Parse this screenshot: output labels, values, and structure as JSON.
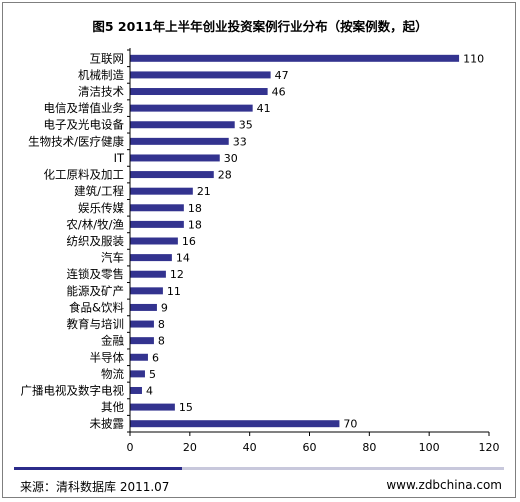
{
  "chart_data": {
    "type": "bar",
    "orientation": "horizontal",
    "title": "图5 2011年上半年创业投资案例行业分布（按案例数，起）",
    "categories": [
      "互联网",
      "机械制造",
      "清洁技术",
      "电信及增值业务",
      "电子及光电设备",
      "生物技术/医疗健康",
      "IT",
      "化工原料及加工",
      "建筑/工程",
      "娱乐传媒",
      "农/林/牧/渔",
      "纺织及服装",
      "汽车",
      "连锁及零售",
      "能源及矿产",
      "食品&饮料",
      "教育与培训",
      "金融",
      "半导体",
      "物流",
      "广播电视及数字电视",
      "其他",
      "未披露"
    ],
    "values": [
      110,
      47,
      46,
      41,
      35,
      33,
      30,
      28,
      21,
      18,
      18,
      16,
      14,
      12,
      11,
      9,
      8,
      8,
      6,
      5,
      4,
      15,
      70
    ],
    "xlim": [
      0,
      120
    ],
    "xticks": [
      0,
      20,
      40,
      60,
      80,
      100,
      120
    ],
    "bar_color": "#33338f",
    "grid": false,
    "legend": "none"
  },
  "footer": {
    "source": "来源：清科数据库 2011.07",
    "website": "www.zdbchina.com",
    "band_color_dark": "#2b2b8a",
    "band_color_light": "#c8c8dc"
  }
}
